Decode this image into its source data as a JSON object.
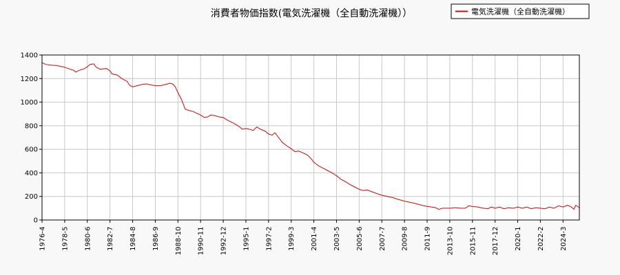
{
  "chart_data": {
    "type": "line",
    "title": "消費者物価指数(電気洗濯機（全自動洗濯機））",
    "xlabel": "",
    "ylabel": "",
    "ylim": [
      0,
      1400
    ],
    "yticks": [
      0,
      200,
      400,
      600,
      800,
      1000,
      1200,
      1400
    ],
    "xlim": [
      "1976-4",
      "2025-9"
    ],
    "xticks": [
      "1976-4",
      "1978-5",
      "1980-6",
      "1982-7",
      "1984-8",
      "1986-9",
      "1988-10",
      "1990-11",
      "1992-12",
      "1995-1",
      "1997-2",
      "1999-3",
      "2001-4",
      "2003-5",
      "2005-6",
      "2007-7",
      "2009-8",
      "2011-9",
      "2013-10",
      "2015-11",
      "2017-12",
      "2020-1",
      "2022-2",
      "2024-3"
    ],
    "grid": true,
    "legend_position": "top-right",
    "series": [
      {
        "name": "電気洗濯機（全自動洗濯機）",
        "color": "#e00000",
        "points": [
          [
            "1976-4",
            1335
          ],
          [
            "1976-8",
            1320
          ],
          [
            "1977-1",
            1315
          ],
          [
            "1977-8",
            1310
          ],
          [
            "1978-3",
            1300
          ],
          [
            "1978-9",
            1285
          ],
          [
            "1979-3",
            1270
          ],
          [
            "1979-5",
            1255
          ],
          [
            "1979-9",
            1270
          ],
          [
            "1980-3",
            1285
          ],
          [
            "1980-6",
            1300
          ],
          [
            "1980-9",
            1320
          ],
          [
            "1981-1",
            1325
          ],
          [
            "1981-4",
            1295
          ],
          [
            "1981-8",
            1280
          ],
          [
            "1982-3",
            1285
          ],
          [
            "1982-7",
            1265
          ],
          [
            "1982-9",
            1240
          ],
          [
            "1983-3",
            1230
          ],
          [
            "1983-8",
            1200
          ],
          [
            "1984-2",
            1175
          ],
          [
            "1984-5",
            1140
          ],
          [
            "1984-8",
            1130
          ],
          [
            "1985-1",
            1140
          ],
          [
            "1985-6",
            1150
          ],
          [
            "1985-11",
            1155
          ],
          [
            "1986-5",
            1145
          ],
          [
            "1986-9",
            1140
          ],
          [
            "1987-3",
            1140
          ],
          [
            "1987-8",
            1150
          ],
          [
            "1988-1",
            1160
          ],
          [
            "1988-4",
            1155
          ],
          [
            "1988-7",
            1130
          ],
          [
            "1988-10",
            1080
          ],
          [
            "1989-2",
            1020
          ],
          [
            "1989-6",
            940
          ],
          [
            "1989-10",
            930
          ],
          [
            "1990-3",
            920
          ],
          [
            "1990-7",
            905
          ],
          [
            "1990-11",
            890
          ],
          [
            "1991-3",
            870
          ],
          [
            "1991-7",
            875
          ],
          [
            "1991-10",
            890
          ],
          [
            "1992-3",
            885
          ],
          [
            "1992-7",
            875
          ],
          [
            "1992-12",
            870
          ],
          [
            "1993-4",
            850
          ],
          [
            "1993-9",
            830
          ],
          [
            "1994-2",
            810
          ],
          [
            "1994-6",
            790
          ],
          [
            "1994-9",
            770
          ],
          [
            "1995-1",
            775
          ],
          [
            "1995-5",
            770
          ],
          [
            "1995-9",
            760
          ],
          [
            "1996-1",
            790
          ],
          [
            "1996-5",
            770
          ],
          [
            "1996-10",
            755
          ],
          [
            "1997-2",
            730
          ],
          [
            "1997-6",
            720
          ],
          [
            "1997-9",
            740
          ],
          [
            "1998-1",
            700
          ],
          [
            "1998-5",
            660
          ],
          [
            "1998-10",
            630
          ],
          [
            "1999-3",
            605
          ],
          [
            "1999-7",
            580
          ],
          [
            "1999-11",
            585
          ],
          [
            "2000-4",
            570
          ],
          [
            "2000-9",
            550
          ],
          [
            "2001-1",
            520
          ],
          [
            "2001-4",
            490
          ],
          [
            "2001-9",
            460
          ],
          [
            "2002-2",
            440
          ],
          [
            "2002-7",
            420
          ],
          [
            "2002-12",
            400
          ],
          [
            "2003-5",
            375
          ],
          [
            "2003-10",
            345
          ],
          [
            "2004-3",
            325
          ],
          [
            "2004-8",
            300
          ],
          [
            "2005-1",
            280
          ],
          [
            "2005-6",
            260
          ],
          [
            "2005-10",
            250
          ],
          [
            "2006-3",
            255
          ],
          [
            "2006-8",
            240
          ],
          [
            "2007-1",
            225
          ],
          [
            "2007-7",
            210
          ],
          [
            "2008-1",
            200
          ],
          [
            "2008-7",
            190
          ],
          [
            "2009-1",
            175
          ],
          [
            "2009-8",
            160
          ],
          [
            "2010-2",
            150
          ],
          [
            "2010-8",
            140
          ],
          [
            "2011-3",
            125
          ],
          [
            "2011-9",
            115
          ],
          [
            "2012-2",
            110
          ],
          [
            "2012-6",
            105
          ],
          [
            "2012-10",
            90
          ],
          [
            "2013-2",
            100
          ],
          [
            "2013-10",
            100
          ],
          [
            "2014-4",
            105
          ],
          [
            "2014-10",
            100
          ],
          [
            "2015-3",
            100
          ],
          [
            "2015-7",
            120
          ],
          [
            "2015-11",
            115
          ],
          [
            "2016-5",
            110
          ],
          [
            "2016-11",
            100
          ],
          [
            "2017-4",
            95
          ],
          [
            "2017-8",
            110
          ],
          [
            "2017-12",
            100
          ],
          [
            "2018-5",
            110
          ],
          [
            "2018-10",
            95
          ],
          [
            "2019-3",
            105
          ],
          [
            "2019-8",
            100
          ],
          [
            "2020-1",
            110
          ],
          [
            "2020-6",
            100
          ],
          [
            "2020-11",
            110
          ],
          [
            "2021-4",
            95
          ],
          [
            "2021-9",
            105
          ],
          [
            "2022-2",
            100
          ],
          [
            "2022-7",
            95
          ],
          [
            "2022-12",
            110
          ],
          [
            "2023-5",
            100
          ],
          [
            "2023-10",
            120
          ],
          [
            "2024-3",
            110
          ],
          [
            "2024-8",
            125
          ],
          [
            "2024-12",
            110
          ],
          [
            "2025-3",
            90
          ],
          [
            "2025-5",
            125
          ],
          [
            "2025-9",
            105
          ]
        ]
      }
    ]
  }
}
